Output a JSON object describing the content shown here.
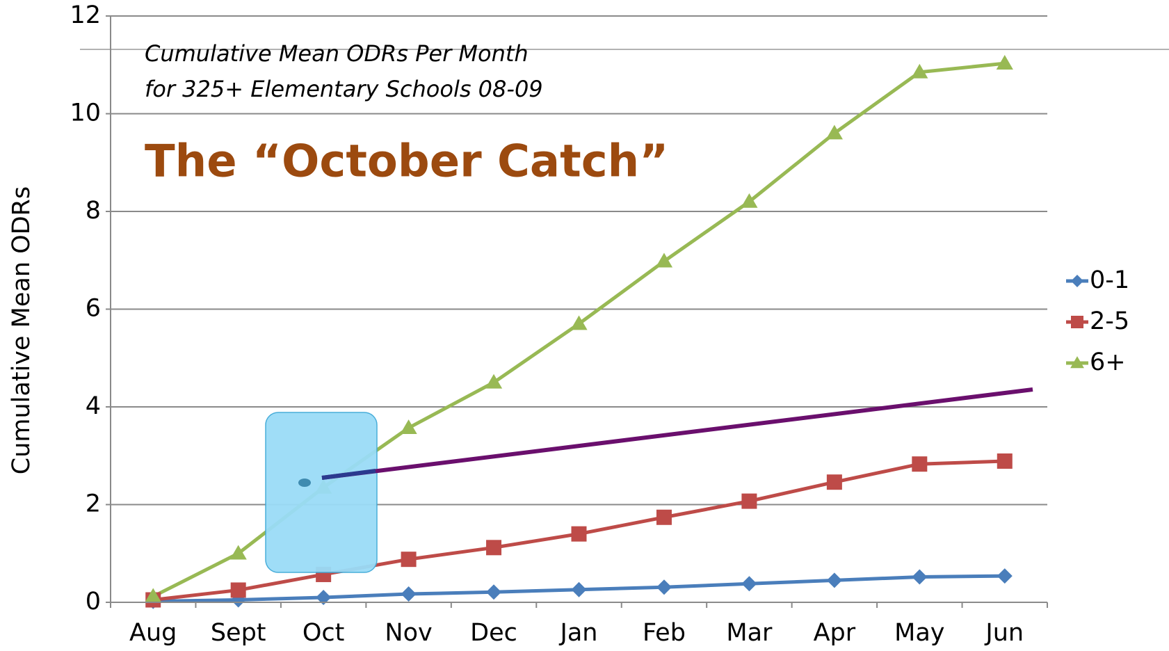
{
  "chart_data": {
    "type": "line",
    "title": "The “October Catch”",
    "subtitle": [
      "Cumulative Mean ODRs Per Month",
      "for 325+ Elementary Schools 08-09"
    ],
    "y_label": "Cumulative Mean ODRs",
    "categories": [
      "Aug",
      "Sept",
      "Oct",
      "Nov",
      "Dec",
      "Jan",
      "Feb",
      "Mar",
      "Apr",
      "May",
      "Jun"
    ],
    "series": [
      {
        "name": "0-1",
        "color": "#4a7ebb",
        "marker": "diamond",
        "values": [
          0.02,
          0.05,
          0.1,
          0.17,
          0.21,
          0.26,
          0.31,
          0.38,
          0.45,
          0.52,
          0.54
        ]
      },
      {
        "name": "2-5",
        "color": "#be4b48",
        "marker": "square",
        "values": [
          0.05,
          0.25,
          0.57,
          0.88,
          1.12,
          1.4,
          1.74,
          2.07,
          2.46,
          2.83,
          2.89
        ]
      },
      {
        "name": "6+",
        "color": "#98b954",
        "marker": "triangle",
        "values": [
          0.12,
          1.0,
          2.35,
          3.57,
          4.5,
          5.7,
          6.98,
          8.2,
          9.6,
          10.85,
          11.03
        ]
      }
    ],
    "ylim": [
      0,
      12
    ],
    "yticks": [
      0,
      2,
      4,
      6,
      8,
      10,
      12
    ],
    "grid": true,
    "legend": "right"
  }
}
